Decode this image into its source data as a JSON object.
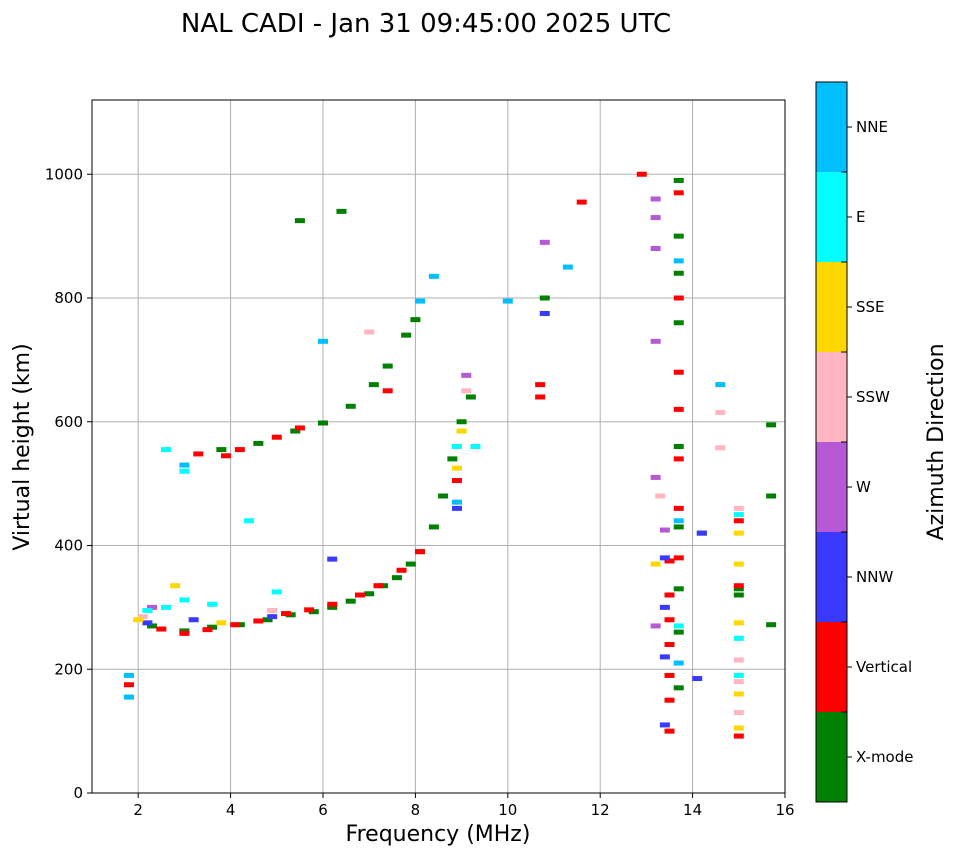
{
  "chart_data": {
    "type": "scatter",
    "title": "NAL CADI - Jan 31 09:45:00 2025 UTC",
    "xlabel": "Frequency (MHz)",
    "ylabel": "Virtual height (km)",
    "xlim": [
      1,
      16
    ],
    "ylim": [
      0,
      1120
    ],
    "xticks": [
      "2",
      "4",
      "6",
      "8",
      "10",
      "12",
      "14",
      "16"
    ],
    "yticks": [
      "0",
      "200",
      "400",
      "600",
      "800",
      "1000"
    ],
    "grid": true,
    "colorbar": {
      "label": "Azimuth Direction",
      "categories": [
        {
          "name": "X-mode",
          "color": "#008000"
        },
        {
          "name": "Vertical",
          "color": "#ff0000"
        },
        {
          "name": "NNW",
          "color": "#3a3aff"
        },
        {
          "name": "W",
          "color": "#b559d6"
        },
        {
          "name": "SSW",
          "color": "#ffb6c1"
        },
        {
          "name": "SSE",
          "color": "#ffd700"
        },
        {
          "name": "E",
          "color": "#00ffff"
        },
        {
          "name": "NNE",
          "color": "#00bfff"
        }
      ]
    },
    "series": [
      {
        "name": "X-mode",
        "points": [
          [
            2.3,
            270
          ],
          [
            3.0,
            262
          ],
          [
            3.6,
            268
          ],
          [
            4.2,
            272
          ],
          [
            4.8,
            280
          ],
          [
            5.3,
            288
          ],
          [
            5.8,
            293
          ],
          [
            6.2,
            300
          ],
          [
            6.6,
            310
          ],
          [
            7.0,
            322
          ],
          [
            7.3,
            335
          ],
          [
            7.6,
            348
          ],
          [
            7.9,
            370
          ],
          [
            8.1,
            390
          ],
          [
            8.4,
            430
          ],
          [
            8.6,
            480
          ],
          [
            8.8,
            540
          ],
          [
            9.0,
            600
          ],
          [
            9.2,
            640
          ],
          [
            3.8,
            555
          ],
          [
            4.6,
            565
          ],
          [
            5.4,
            585
          ],
          [
            6.0,
            598
          ],
          [
            6.6,
            625
          ],
          [
            7.1,
            660
          ],
          [
            7.4,
            690
          ],
          [
            7.8,
            740
          ],
          [
            8.0,
            765
          ],
          [
            10.8,
            800
          ],
          [
            13.7,
            990
          ],
          [
            13.7,
            900
          ],
          [
            13.7,
            840
          ],
          [
            13.7,
            760
          ],
          [
            13.7,
            560
          ],
          [
            13.7,
            430
          ],
          [
            13.7,
            330
          ],
          [
            13.7,
            260
          ],
          [
            13.7,
            170
          ],
          [
            15.0,
            330
          ],
          [
            15.0,
            320
          ],
          [
            15.7,
            272
          ],
          [
            15.7,
            595
          ],
          [
            15.7,
            480
          ],
          [
            14.2,
            420
          ],
          [
            6.4,
            940
          ],
          [
            5.5,
            925
          ]
        ]
      },
      {
        "name": "Vertical",
        "points": [
          [
            2.5,
            265
          ],
          [
            3.0,
            258
          ],
          [
            3.5,
            264
          ],
          [
            4.1,
            272
          ],
          [
            4.6,
            278
          ],
          [
            5.2,
            290
          ],
          [
            5.7,
            296
          ],
          [
            6.2,
            305
          ],
          [
            6.8,
            320
          ],
          [
            7.2,
            335
          ],
          [
            7.7,
            360
          ],
          [
            8.1,
            390
          ],
          [
            3.3,
            548
          ],
          [
            3.9,
            545
          ],
          [
            4.2,
            555
          ],
          [
            5.0,
            575
          ],
          [
            5.5,
            590
          ],
          [
            7.4,
            650
          ],
          [
            8.9,
            505
          ],
          [
            1.8,
            175
          ],
          [
            13.5,
            375
          ],
          [
            13.5,
            320
          ],
          [
            13.5,
            280
          ],
          [
            13.5,
            240
          ],
          [
            13.5,
            190
          ],
          [
            13.5,
            150
          ],
          [
            13.5,
            100
          ],
          [
            13.7,
            970
          ],
          [
            13.7,
            800
          ],
          [
            13.7,
            680
          ],
          [
            13.7,
            620
          ],
          [
            13.7,
            540
          ],
          [
            13.7,
            460
          ],
          [
            13.7,
            380
          ],
          [
            15.0,
            440
          ],
          [
            15.0,
            335
          ],
          [
            15.0,
            92
          ],
          [
            12.9,
            1000
          ],
          [
            10.7,
            640
          ],
          [
            10.7,
            660
          ],
          [
            11.6,
            955
          ]
        ]
      },
      {
        "name": "NNW",
        "points": [
          [
            13.4,
            380
          ],
          [
            13.4,
            300
          ],
          [
            13.4,
            220
          ],
          [
            13.4,
            110
          ],
          [
            2.2,
            275
          ],
          [
            3.2,
            280
          ],
          [
            8.9,
            460
          ],
          [
            10.8,
            775
          ],
          [
            14.1,
            185
          ],
          [
            14.2,
            420
          ],
          [
            4.9,
            285
          ],
          [
            6.2,
            378
          ]
        ]
      },
      {
        "name": "W",
        "points": [
          [
            13.2,
            960
          ],
          [
            13.2,
            930
          ],
          [
            13.2,
            880
          ],
          [
            13.2,
            730
          ],
          [
            13.2,
            510
          ],
          [
            13.2,
            270
          ],
          [
            13.4,
            425
          ],
          [
            10.8,
            890
          ],
          [
            9.1,
            675
          ],
          [
            2.3,
            300
          ]
        ]
      },
      {
        "name": "SSW",
        "points": [
          [
            15.0,
            460
          ],
          [
            15.0,
            215
          ],
          [
            15.0,
            180
          ],
          [
            15.0,
            130
          ],
          [
            14.6,
            615
          ],
          [
            14.6,
            558
          ],
          [
            13.3,
            480
          ],
          [
            9.1,
            650
          ],
          [
            2.1,
            285
          ],
          [
            4.9,
            295
          ],
          [
            7.0,
            745
          ]
        ]
      },
      {
        "name": "SSE",
        "points": [
          [
            15.0,
            420
          ],
          [
            15.0,
            370
          ],
          [
            15.0,
            275
          ],
          [
            15.0,
            160
          ],
          [
            15.0,
            105
          ],
          [
            9.0,
            585
          ],
          [
            8.9,
            525
          ],
          [
            2.0,
            280
          ],
          [
            2.8,
            335
          ],
          [
            3.8,
            275
          ],
          [
            13.2,
            370
          ]
        ]
      },
      {
        "name": "E",
        "points": [
          [
            15.0,
            450
          ],
          [
            15.0,
            250
          ],
          [
            15.0,
            190
          ],
          [
            8.9,
            560
          ],
          [
            9.3,
            560
          ],
          [
            2.2,
            295
          ],
          [
            2.6,
            300
          ],
          [
            3.0,
            312
          ],
          [
            3.6,
            305
          ],
          [
            4.4,
            440
          ],
          [
            5.0,
            325
          ],
          [
            2.6,
            555
          ],
          [
            3.0,
            520
          ],
          [
            13.7,
            270
          ]
        ]
      },
      {
        "name": "NNE",
        "points": [
          [
            13.7,
            440
          ],
          [
            13.7,
            210
          ],
          [
            13.7,
            860
          ],
          [
            14.6,
            660
          ],
          [
            8.9,
            470
          ],
          [
            8.4,
            835
          ],
          [
            8.1,
            795
          ],
          [
            10.0,
            795
          ],
          [
            1.8,
            190
          ],
          [
            1.8,
            155
          ],
          [
            3.0,
            530
          ],
          [
            6.0,
            730
          ],
          [
            11.3,
            850
          ]
        ]
      }
    ]
  }
}
